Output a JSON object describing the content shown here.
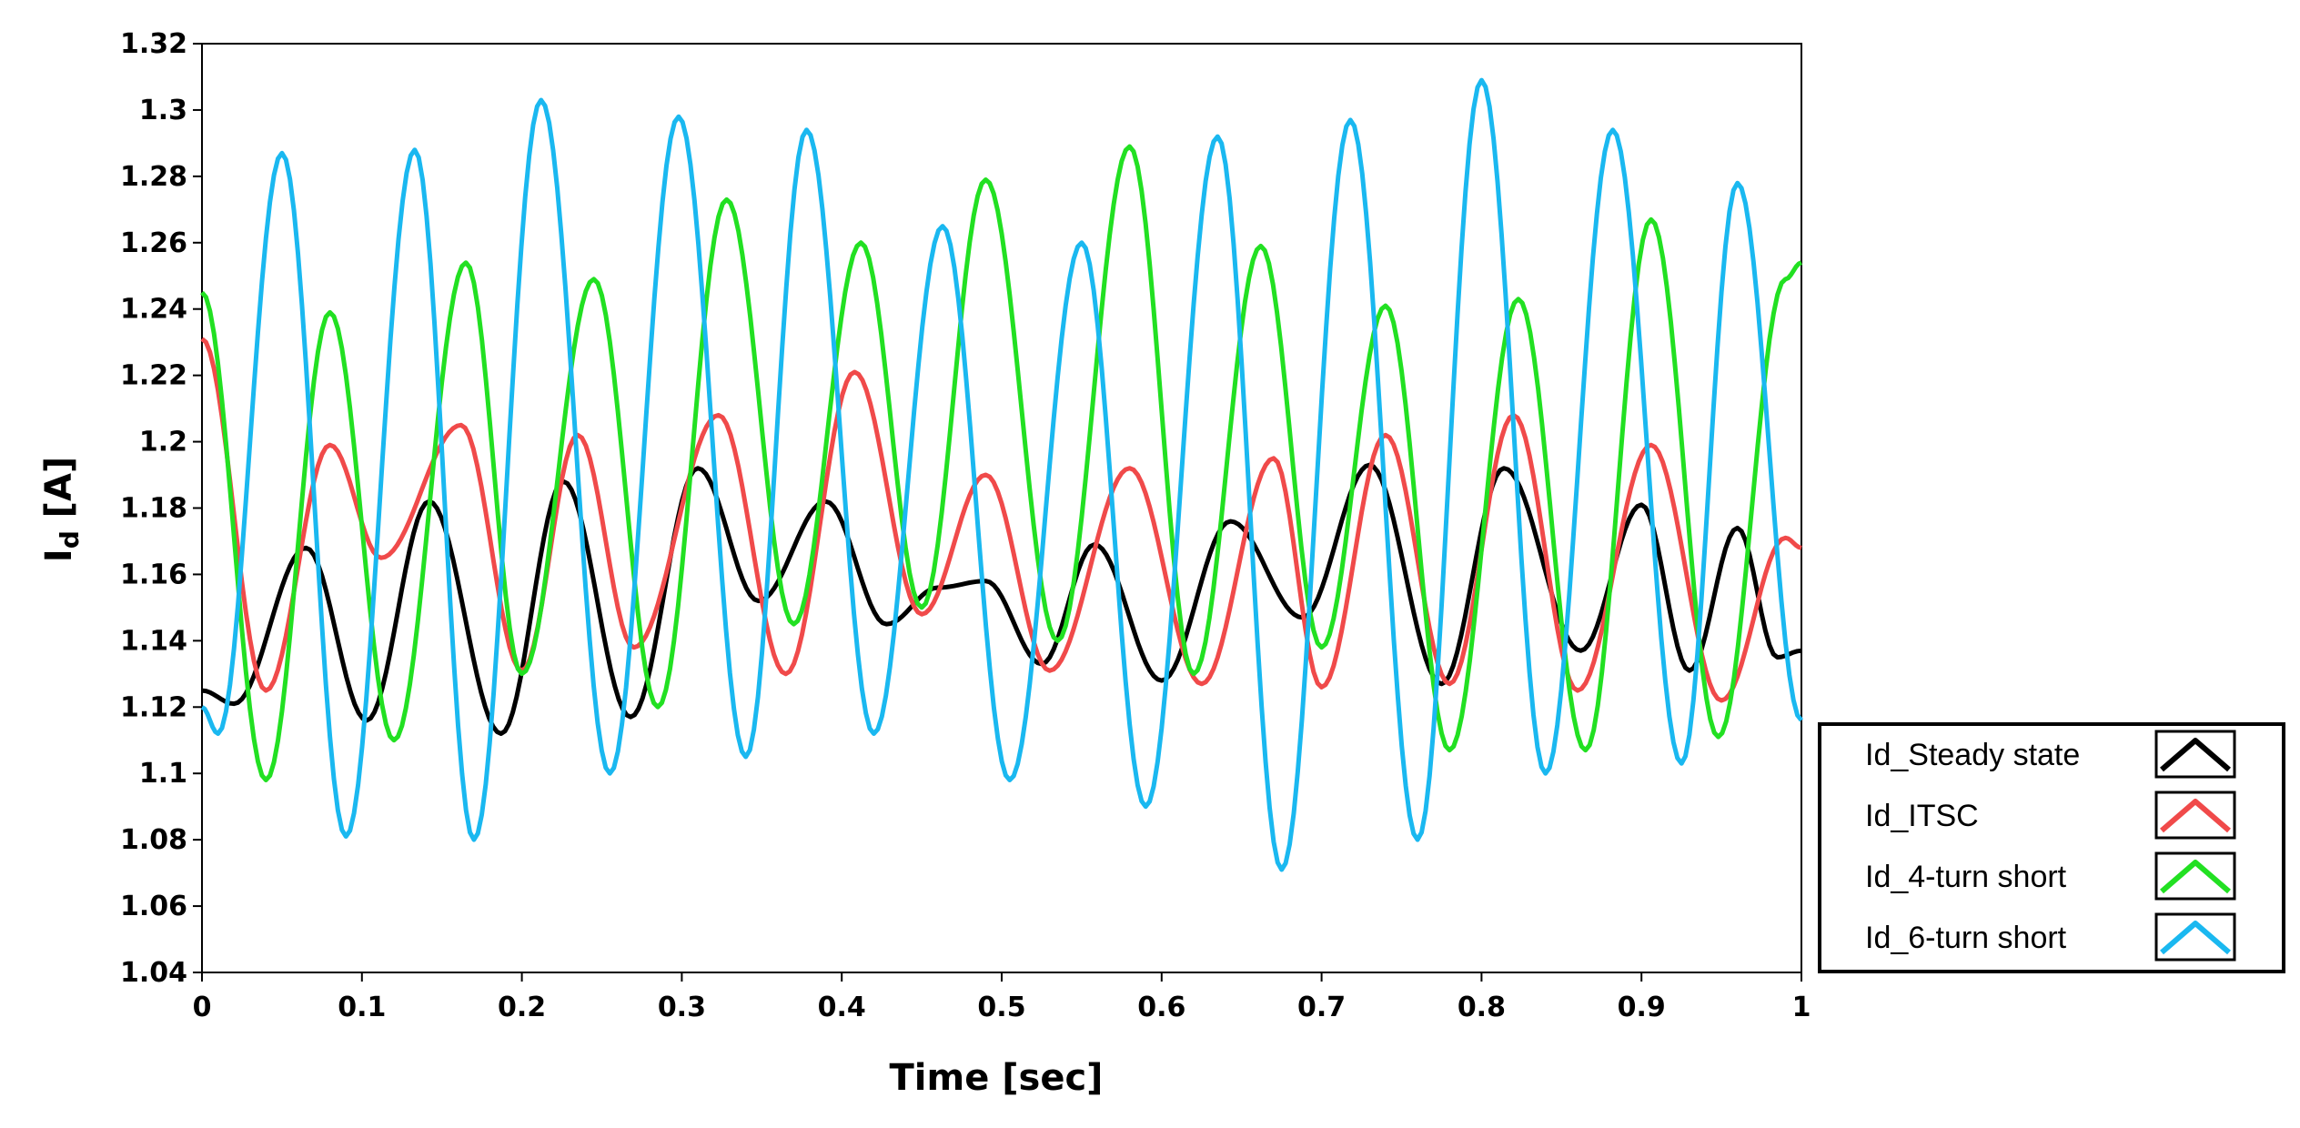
{
  "chart_data": {
    "type": "line",
    "title": "",
    "xlabel": "Time [sec]",
    "ylabel_main": "I",
    "ylabel_sub": "d",
    "ylabel_unit": " [A]",
    "xlim": [
      0,
      1
    ],
    "ylim": [
      1.04,
      1.32
    ],
    "xticks": [
      "0",
      "0.1",
      "0.2",
      "0.3",
      "0.4",
      "0.5",
      "0.6",
      "0.7",
      "0.8",
      "0.9",
      "1"
    ],
    "yticks": [
      "1.04",
      "1.06",
      "1.08",
      "1.1",
      "1.12",
      "1.14",
      "1.16",
      "1.18",
      "1.2",
      "1.22",
      "1.24",
      "1.26",
      "1.28",
      "1.3",
      "1.32"
    ],
    "grid": false,
    "legend_position": "right-bottom-outside",
    "series": [
      {
        "name": "Id_Steady state",
        "color": "#000000",
        "x": [
          0,
          0.02,
          0.065,
          0.103,
          0.142,
          0.187,
          0.226,
          0.268,
          0.31,
          0.348,
          0.39,
          0.428,
          0.46,
          0.49,
          0.525,
          0.558,
          0.6,
          0.643,
          0.688,
          0.73,
          0.775,
          0.814,
          0.862,
          0.9,
          0.93,
          0.96,
          0.985,
          1
        ],
        "values": [
          1.125,
          1.121,
          1.168,
          1.116,
          1.182,
          1.112,
          1.188,
          1.117,
          1.192,
          1.152,
          1.182,
          1.145,
          1.156,
          1.158,
          1.133,
          1.169,
          1.128,
          1.176,
          1.147,
          1.193,
          1.127,
          1.192,
          1.137,
          1.181,
          1.131,
          1.174,
          1.135,
          1.137
        ]
      },
      {
        "name": "Id_ITSC",
        "color": "#f04a4a",
        "x": [
          0,
          0.04,
          0.08,
          0.112,
          0.162,
          0.2,
          0.235,
          0.27,
          0.323,
          0.365,
          0.408,
          0.45,
          0.49,
          0.53,
          0.58,
          0.625,
          0.67,
          0.7,
          0.74,
          0.78,
          0.82,
          0.86,
          0.906,
          0.95,
          0.99,
          1
        ],
        "values": [
          1.231,
          1.125,
          1.199,
          1.165,
          1.205,
          1.131,
          1.202,
          1.138,
          1.208,
          1.13,
          1.221,
          1.148,
          1.19,
          1.131,
          1.192,
          1.127,
          1.195,
          1.126,
          1.202,
          1.127,
          1.208,
          1.125,
          1.199,
          1.122,
          1.171,
          1.168
        ]
      },
      {
        "name": "Id_4-turn short",
        "color": "#22e022",
        "x": [
          0,
          0.04,
          0.08,
          0.12,
          0.165,
          0.2,
          0.245,
          0.285,
          0.328,
          0.37,
          0.412,
          0.45,
          0.49,
          0.535,
          0.58,
          0.62,
          0.662,
          0.7,
          0.74,
          0.78,
          0.823,
          0.865,
          0.906,
          0.948,
          0.99,
          1
        ],
        "values": [
          1.245,
          1.098,
          1.239,
          1.11,
          1.254,
          1.13,
          1.249,
          1.12,
          1.273,
          1.145,
          1.26,
          1.15,
          1.279,
          1.14,
          1.289,
          1.13,
          1.259,
          1.138,
          1.241,
          1.107,
          1.243,
          1.107,
          1.267,
          1.111,
          1.249,
          1.254
        ]
      },
      {
        "name": "Id_6-turn short",
        "color": "#1ab8f0",
        "x": [
          0,
          0.01,
          0.05,
          0.09,
          0.133,
          0.17,
          0.212,
          0.255,
          0.298,
          0.34,
          0.378,
          0.42,
          0.463,
          0.505,
          0.55,
          0.59,
          0.635,
          0.675,
          0.718,
          0.76,
          0.8,
          0.84,
          0.882,
          0.925,
          0.96,
          1
        ],
        "values": [
          1.12,
          1.112,
          1.287,
          1.081,
          1.288,
          1.08,
          1.303,
          1.1,
          1.298,
          1.105,
          1.294,
          1.112,
          1.265,
          1.098,
          1.26,
          1.09,
          1.292,
          1.071,
          1.297,
          1.08,
          1.309,
          1.1,
          1.294,
          1.103,
          1.278,
          1.116
        ]
      }
    ]
  }
}
